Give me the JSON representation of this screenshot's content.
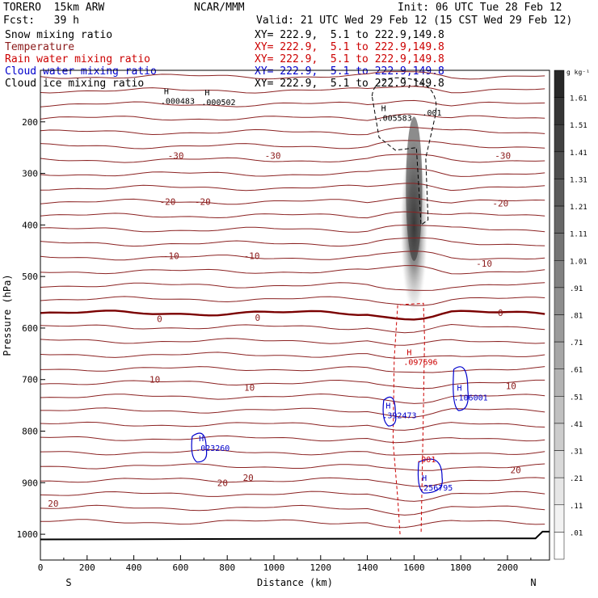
{
  "header": {
    "model": "TORERO  15km ARW",
    "org": "NCAR/MMM",
    "init": "Init: 06 UTC Tue 28 Feb 12",
    "fcst": "Fcst:   39 h",
    "valid": "Valid: 21 UTC Wed 29 Feb 12 (15 CST Wed 29 Feb 12)"
  },
  "fields": [
    {
      "name": "Snow mixing ratio",
      "xy": "XY= 222.9,  5.1 to 222.9,149.8",
      "color": "#000000"
    },
    {
      "name": "Temperature",
      "xy": "XY= 222.9,  5.1 to 222.9,149.8",
      "color": "#8b1a1a"
    },
    {
      "name": "Rain water mixing ratio",
      "xy": "XY= 222.9,  5.1 to 222.9,149.8",
      "color": "#cc0000"
    },
    {
      "name": "Cloud water mixing ratio",
      "xy": "XY= 222.9,  5.1 to 222.9,149.8",
      "color": "#0000cc"
    },
    {
      "name": "Cloud ice mixing ratio",
      "xy": "XY= 222.9,  5.1 to 222.9,149.8",
      "color": "#000000"
    }
  ],
  "chart_data": {
    "type": "cross-section",
    "xlabel": "Distance (km)",
    "ylabel": "Pressure (hPa)",
    "xlim": [
      0,
      2180
    ],
    "ylim": [
      1050,
      100
    ],
    "xticks": [
      "0",
      "200",
      "400",
      "600",
      "800",
      "1000",
      "1200",
      "1400",
      "1600",
      "1800",
      "2000"
    ],
    "yticks": [
      "200",
      "300",
      "400",
      "500",
      "600",
      "700",
      "800",
      "900",
      "1000"
    ],
    "end_labels": {
      "left": "S",
      "right": "N"
    },
    "colorbar": {
      "unit": "g kg⁻¹",
      "labels": [
        "1.61",
        "1.51",
        "1.41",
        "1.31",
        "1.21",
        "1.11",
        "1.01",
        ".91",
        ".81",
        ".71",
        ".61",
        ".51",
        ".41",
        ".31",
        ".21",
        ".11",
        ".01"
      ]
    },
    "temperature_labels": [
      {
        "text": "-30",
        "x": 580,
        "p": 265
      },
      {
        "text": "-30",
        "x": 995,
        "p": 265
      },
      {
        "text": "-30",
        "x": 1980,
        "p": 265
      },
      {
        "text": "-20",
        "x": 545,
        "p": 355
      },
      {
        "text": "-20",
        "x": 695,
        "p": 355
      },
      {
        "text": "-20",
        "x": 1970,
        "p": 358
      },
      {
        "text": "-10",
        "x": 560,
        "p": 460
      },
      {
        "text": "-10",
        "x": 905,
        "p": 460
      },
      {
        "text": "-10",
        "x": 1900,
        "p": 475
      },
      {
        "text": "0",
        "x": 510,
        "p": 582
      },
      {
        "text": "0",
        "x": 930,
        "p": 580
      },
      {
        "text": "0",
        "x": 1970,
        "p": 570
      },
      {
        "text": "10",
        "x": 490,
        "p": 700
      },
      {
        "text": "10",
        "x": 895,
        "p": 715
      },
      {
        "text": "10",
        "x": 2015,
        "p": 712
      },
      {
        "text": "20",
        "x": 780,
        "p": 900
      },
      {
        "text": "20",
        "x": 890,
        "p": 890
      },
      {
        "text": "20",
        "x": 2035,
        "p": 875
      },
      {
        "text": "20",
        "x": 55,
        "p": 940
      }
    ],
    "maxima": [
      {
        "label": "H",
        "value": ".000483",
        "x": 515,
        "p": 162,
        "color": "#000000"
      },
      {
        "label": "H",
        "value": ".000502",
        "x": 690,
        "p": 164,
        "color": "#000000"
      },
      {
        "label": "H",
        "value": ".005583",
        "x": 1445,
        "p": 195,
        "color": "#000000"
      },
      {
        "label": "",
        "value": ".001",
        "x": 1635,
        "p": 185,
        "color": "#000000"
      },
      {
        "label": "H",
        "value": ".097696",
        "x": 1555,
        "p": 668,
        "color": "#cc0000"
      },
      {
        "label": "H",
        "value": ".392473",
        "x": 1465,
        "p": 772,
        "color": "#0000cc"
      },
      {
        "label": "H",
        "value": ".106001",
        "x": 1770,
        "p": 737,
        "color": "#0000cc"
      },
      {
        "label": "H",
        "value": ".023260",
        "x": 665,
        "p": 835,
        "color": "#0000cc"
      },
      {
        "label": "",
        "value": ".001",
        "x": 1610,
        "p": 857,
        "color": "#cc0000"
      },
      {
        "label": "H",
        "value": ".256795",
        "x": 1620,
        "p": 912,
        "color": "#0000cc"
      }
    ]
  }
}
